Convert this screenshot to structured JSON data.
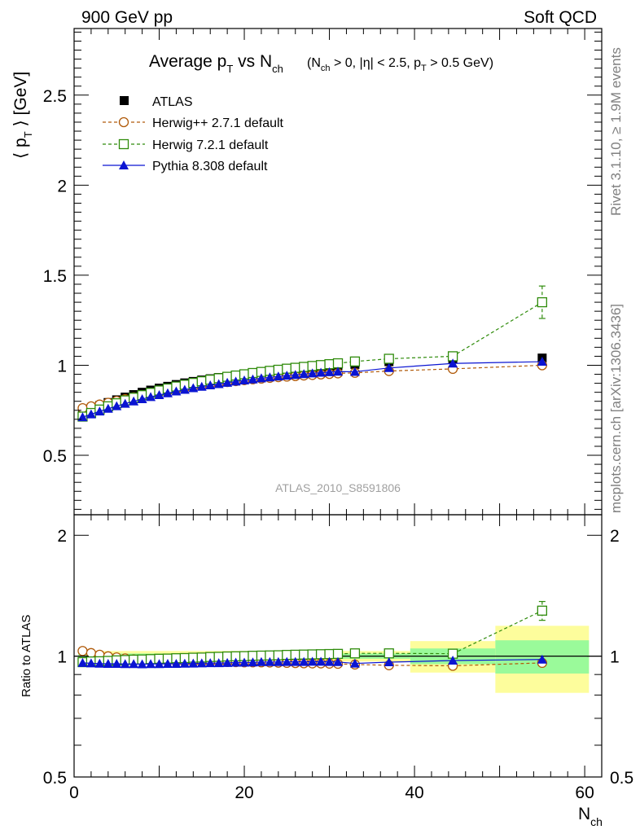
{
  "header": {
    "left": "900 GeV pp",
    "right": "Soft QCD"
  },
  "side_text": {
    "top": "Rivet 3.1.10, ≥ 1.9M events",
    "bottom": "mcplots.cern.ch [arXiv:1306.3436]"
  },
  "watermark": "ATLAS_2010_S8591806",
  "colors": {
    "atlas": "#000000",
    "herwigpp": "#b05a0a",
    "herwig7": "#2e8b0a",
    "pythia": "#0a14d2",
    "band_inner": "#9afa9a",
    "band_outer": "#fdfd9c"
  },
  "chart_data": [
    {
      "type": "scatter",
      "title_main": "Average p",
      "title_sub1": "T",
      "title_mid": " vs N",
      "title_sub2": "ch",
      "title_cond": "(N",
      "title_cond_sub1": "ch",
      "title_cond_mid": " > 0, |η| < 2.5, p",
      "title_cond_sub2": "T",
      "title_cond_end": " > 0.5 GeV)",
      "ylabel_pre": "⟨ p",
      "ylabel_sub": "T",
      "ylabel_post": " ⟩ [GeV]",
      "xlim": [
        0,
        62
      ],
      "ylim": [
        0.17,
        2.87
      ],
      "yticks": [
        0.5,
        1,
        1.5,
        2,
        2.5
      ],
      "ytick_labels": [
        "0.5",
        "1",
        "1.5",
        "2",
        "2.5"
      ],
      "legend_position": "top-left",
      "legend": [
        "ATLAS",
        "Herwig++ 2.7.1 default",
        "Herwig 7.2.1 default",
        "Pythia 8.308 default"
      ],
      "x": [
        1,
        2,
        3,
        4,
        5,
        6,
        7,
        8,
        9,
        10,
        11,
        12,
        13,
        14,
        15,
        16,
        17,
        18,
        19,
        20,
        21,
        22,
        23,
        24,
        25,
        26,
        27,
        28,
        29,
        30,
        31,
        33,
        37,
        44.5,
        55
      ],
      "series": [
        {
          "name": "ATLAS",
          "values": [
            0.74,
            0.758,
            0.776,
            0.793,
            0.808,
            0.823,
            0.837,
            0.85,
            0.862,
            0.873,
            0.883,
            0.893,
            0.902,
            0.91,
            0.918,
            0.925,
            0.932,
            0.938,
            0.944,
            0.95,
            0.955,
            0.96,
            0.965,
            0.97,
            0.974,
            0.978,
            0.982,
            0.986,
            0.99,
            0.994,
            0.998,
            1.005,
            1.02,
            1.036,
            1.04
          ]
        },
        {
          "name": "Herwig++ 2.7.1 default",
          "values": [
            0.762,
            0.772,
            0.782,
            0.792,
            0.802,
            0.812,
            0.822,
            0.832,
            0.841,
            0.85,
            0.858,
            0.866,
            0.874,
            0.881,
            0.888,
            0.895,
            0.901,
            0.907,
            0.912,
            0.917,
            0.922,
            0.926,
            0.93,
            0.934,
            0.937,
            0.94,
            0.943,
            0.946,
            0.949,
            0.952,
            0.955,
            0.958,
            0.968,
            0.98,
            1.0
          ]
        },
        {
          "name": "Herwig 7.2.1 default",
          "values": [
            0.715,
            0.735,
            0.754,
            0.772,
            0.789,
            0.805,
            0.82,
            0.834,
            0.847,
            0.86,
            0.871,
            0.882,
            0.892,
            0.902,
            0.911,
            0.92,
            0.928,
            0.936,
            0.943,
            0.95,
            0.957,
            0.963,
            0.969,
            0.975,
            0.981,
            0.986,
            0.991,
            0.996,
            1.001,
            1.006,
            1.011,
            1.021,
            1.036,
            1.05,
            1.35
          ],
          "err_last": 0.09
        },
        {
          "name": "Pythia 8.308 default",
          "values": [
            0.712,
            0.728,
            0.744,
            0.759,
            0.773,
            0.787,
            0.8,
            0.812,
            0.824,
            0.835,
            0.845,
            0.855,
            0.864,
            0.873,
            0.881,
            0.889,
            0.896,
            0.903,
            0.91,
            0.916,
            0.922,
            0.928,
            0.933,
            0.938,
            0.943,
            0.947,
            0.951,
            0.955,
            0.959,
            0.962,
            0.965,
            0.964,
            0.985,
            1.01,
            1.02
          ]
        }
      ]
    },
    {
      "type": "scatter",
      "ylabel": "Ratio to ATLAS",
      "xlabel_main": "N",
      "xlabel_sub": "ch",
      "xlim": [
        0,
        62
      ],
      "ylim": [
        0.5,
        2.25
      ],
      "yticks": [
        0.5,
        1,
        2
      ],
      "ytick_labels": [
        "0.5",
        "1",
        "2"
      ],
      "xticks": [
        0,
        20,
        40,
        60
      ],
      "xtick_labels": [
        "0",
        "20",
        "40",
        "60"
      ],
      "bands": [
        {
          "x_from": 0.5,
          "x_to": 39.5,
          "inner": 0.015,
          "outer": 0.03
        },
        {
          "x_from": 39.5,
          "x_to": 49.5,
          "inner": 0.045,
          "outer": 0.09
        },
        {
          "x_from": 49.5,
          "x_to": 60.5,
          "inner": 0.095,
          "outer": 0.19
        }
      ],
      "series": [
        {
          "name": "Herwig++ 2.7.1 default",
          "values": [
            1.03,
            1.018,
            1.008,
            0.999,
            0.993,
            0.987,
            0.982,
            0.979,
            0.976,
            0.974,
            0.972,
            0.97,
            0.969,
            0.968,
            0.967,
            0.968,
            0.967,
            0.967,
            0.966,
            0.965,
            0.965,
            0.965,
            0.964,
            0.963,
            0.962,
            0.961,
            0.96,
            0.959,
            0.959,
            0.958,
            0.957,
            0.953,
            0.949,
            0.946,
            0.962
          ]
        },
        {
          "name": "Herwig 7.2.1 default",
          "values": [
            0.966,
            0.97,
            0.971,
            0.973,
            0.976,
            0.978,
            0.98,
            0.981,
            0.983,
            0.985,
            0.986,
            0.988,
            0.989,
            0.991,
            0.992,
            0.995,
            0.996,
            0.998,
            0.999,
            1.0,
            1.002,
            1.003,
            1.004,
            1.005,
            1.007,
            1.008,
            1.009,
            1.01,
            1.011,
            1.012,
            1.013,
            1.016,
            1.016,
            1.014,
            1.298
          ],
          "err_last": 0.07
        },
        {
          "name": "Pythia 8.308 default",
          "values": [
            0.962,
            0.96,
            0.958,
            0.957,
            0.957,
            0.956,
            0.956,
            0.955,
            0.956,
            0.956,
            0.957,
            0.957,
            0.958,
            0.959,
            0.96,
            0.961,
            0.961,
            0.962,
            0.964,
            0.964,
            0.965,
            0.967,
            0.967,
            0.967,
            0.968,
            0.968,
            0.968,
            0.969,
            0.969,
            0.968,
            0.967,
            0.959,
            0.966,
            0.975,
            0.981
          ]
        }
      ]
    }
  ]
}
